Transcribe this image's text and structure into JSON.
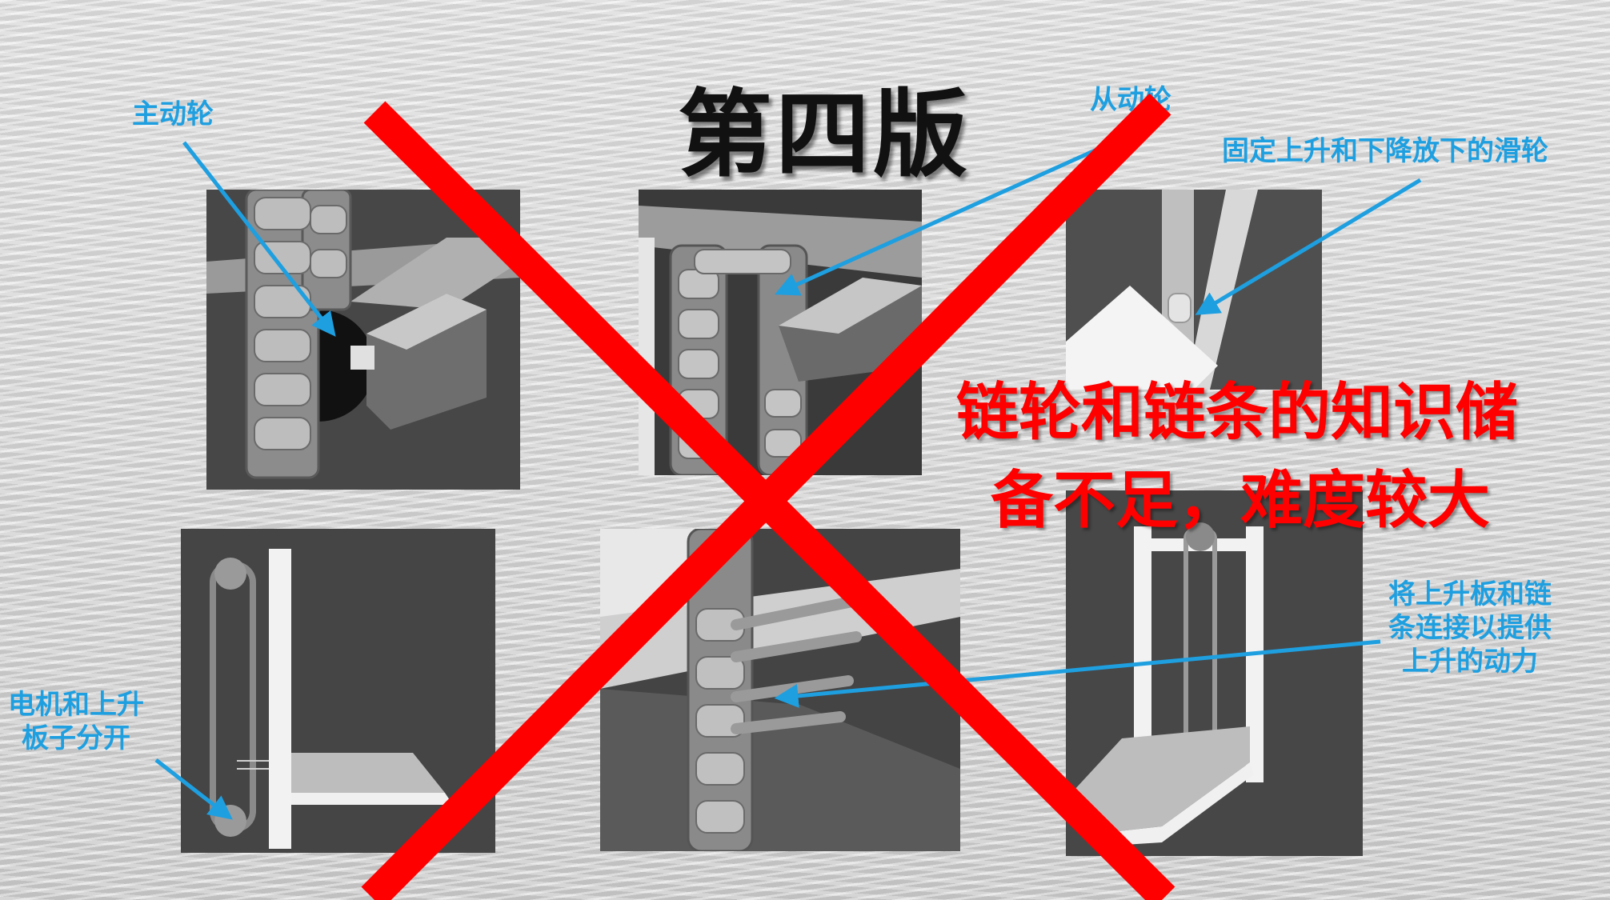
{
  "slide": {
    "title": "第四版",
    "verdict_line1": "链轮和链条的知识储",
    "verdict_line2": "备不足，难度较大",
    "labels": {
      "driving_wheel": "主动轮",
      "driven_wheel": "从动轮",
      "fixed_pulley": "固定上升和下降放下的滑轮",
      "motor_separate_line1": "电机和上升",
      "motor_separate_line2": "板子分开",
      "connect_line1": "将上升板和链",
      "connect_line2": "条连接以提供",
      "connect_line3": "上升的动力"
    }
  },
  "colors": {
    "callout": "#1e9fe0",
    "cross": "#ff0000",
    "panel": "#4a4a4a",
    "title": "#111111"
  }
}
